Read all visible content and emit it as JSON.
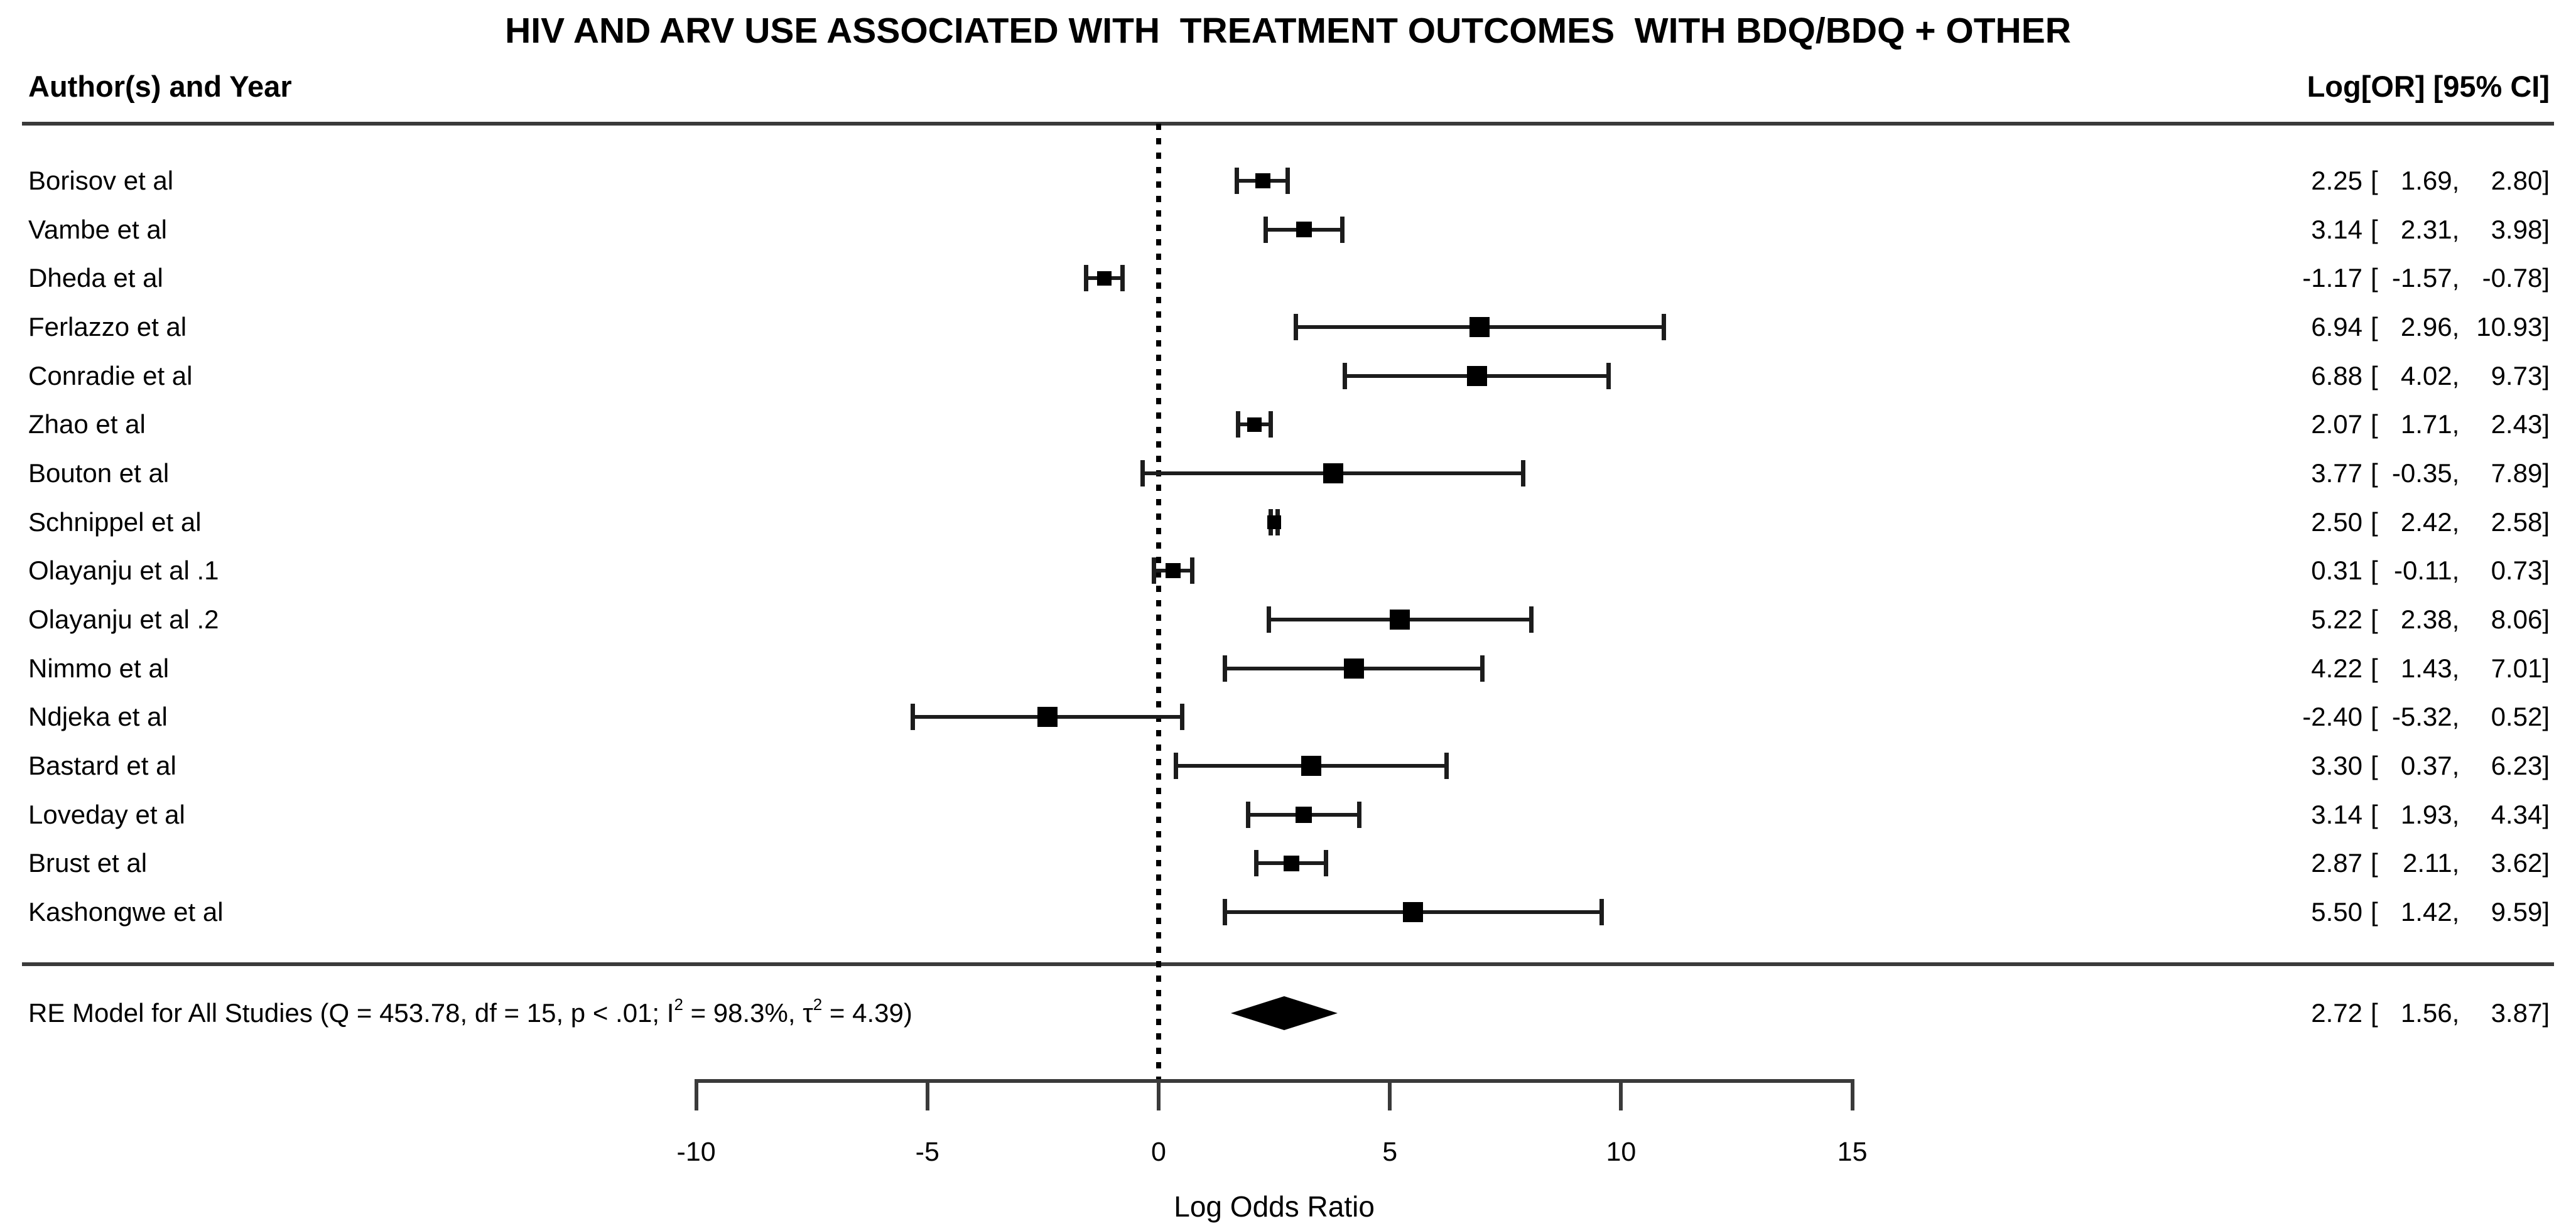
{
  "title": "HIV AND ARV USE ASSOCIATED WITH  TREATMENT OUTCOMES  WITH BDQ/BDQ + OTHER",
  "headers": {
    "left": "Author(s) and Year",
    "right": "Log[OR] [95% CI]"
  },
  "axis": {
    "label": "Log Odds Ratio"
  },
  "colors": {
    "text": "#000000",
    "line": "#3a3a3a",
    "marker": "#000000"
  },
  "chart_data": {
    "type": "forest",
    "title": "HIV AND ARV USE ASSOCIATED WITH  TREATMENT OUTCOMES  WITH BDQ/BDQ + OTHER",
    "xlabel": "Log Odds Ratio",
    "left_column_header": "Author(s) and Year",
    "right_column_header": "Log[OR] [95% CI]",
    "x_ticks": [
      -10,
      -5,
      0,
      5,
      10,
      15
    ],
    "xlim": [
      -10,
      15
    ],
    "zero_line": 0,
    "grid": false,
    "studies": [
      {
        "author": "Borisov et al",
        "est": 2.25,
        "lo": 1.69,
        "hi": 2.8
      },
      {
        "author": "Vambe et al",
        "est": 3.14,
        "lo": 2.31,
        "hi": 3.98
      },
      {
        "author": "Dheda et al",
        "est": -1.17,
        "lo": -1.57,
        "hi": -0.78
      },
      {
        "author": "Ferlazzo et al",
        "est": 6.94,
        "lo": 2.96,
        "hi": 10.93
      },
      {
        "author": "Conradie et al",
        "est": 6.88,
        "lo": 4.02,
        "hi": 9.73
      },
      {
        "author": "Zhao et al",
        "est": 2.07,
        "lo": 1.71,
        "hi": 2.43
      },
      {
        "author": "Bouton et al",
        "est": 3.77,
        "lo": -0.35,
        "hi": 7.89
      },
      {
        "author": "Schnippel et al",
        "est": 2.5,
        "lo": 2.42,
        "hi": 2.58
      },
      {
        "author": "Olayanju et al .1",
        "est": 0.31,
        "lo": -0.11,
        "hi": 0.73
      },
      {
        "author": "Olayanju et al .2",
        "est": 5.22,
        "lo": 2.38,
        "hi": 8.06
      },
      {
        "author": "Nimmo et al",
        "est": 4.22,
        "lo": 1.43,
        "hi": 7.01
      },
      {
        "author": "Ndjeka et al",
        "est": -2.4,
        "lo": -5.32,
        "hi": 0.52
      },
      {
        "author": "Bastard et al",
        "est": 3.3,
        "lo": 0.37,
        "hi": 6.23
      },
      {
        "author": "Loveday et al",
        "est": 3.14,
        "lo": 1.93,
        "hi": 4.34
      },
      {
        "author": "Brust et al",
        "est": 2.87,
        "lo": 2.11,
        "hi": 3.62
      },
      {
        "author": "Kashongwe et al",
        "est": 5.5,
        "lo": 1.42,
        "hi": 9.59
      }
    ],
    "summary": {
      "label_parts": [
        {
          "text": "RE Model for All Studies (Q = 453.78, df = 15, p < .01; I"
        },
        {
          "sup": "2"
        },
        {
          "text": " = 98.3%, τ"
        },
        {
          "sup": "2"
        },
        {
          "text": " = 4.39)"
        }
      ],
      "est": 2.72,
      "lo": 1.56,
      "hi": 3.87
    }
  }
}
